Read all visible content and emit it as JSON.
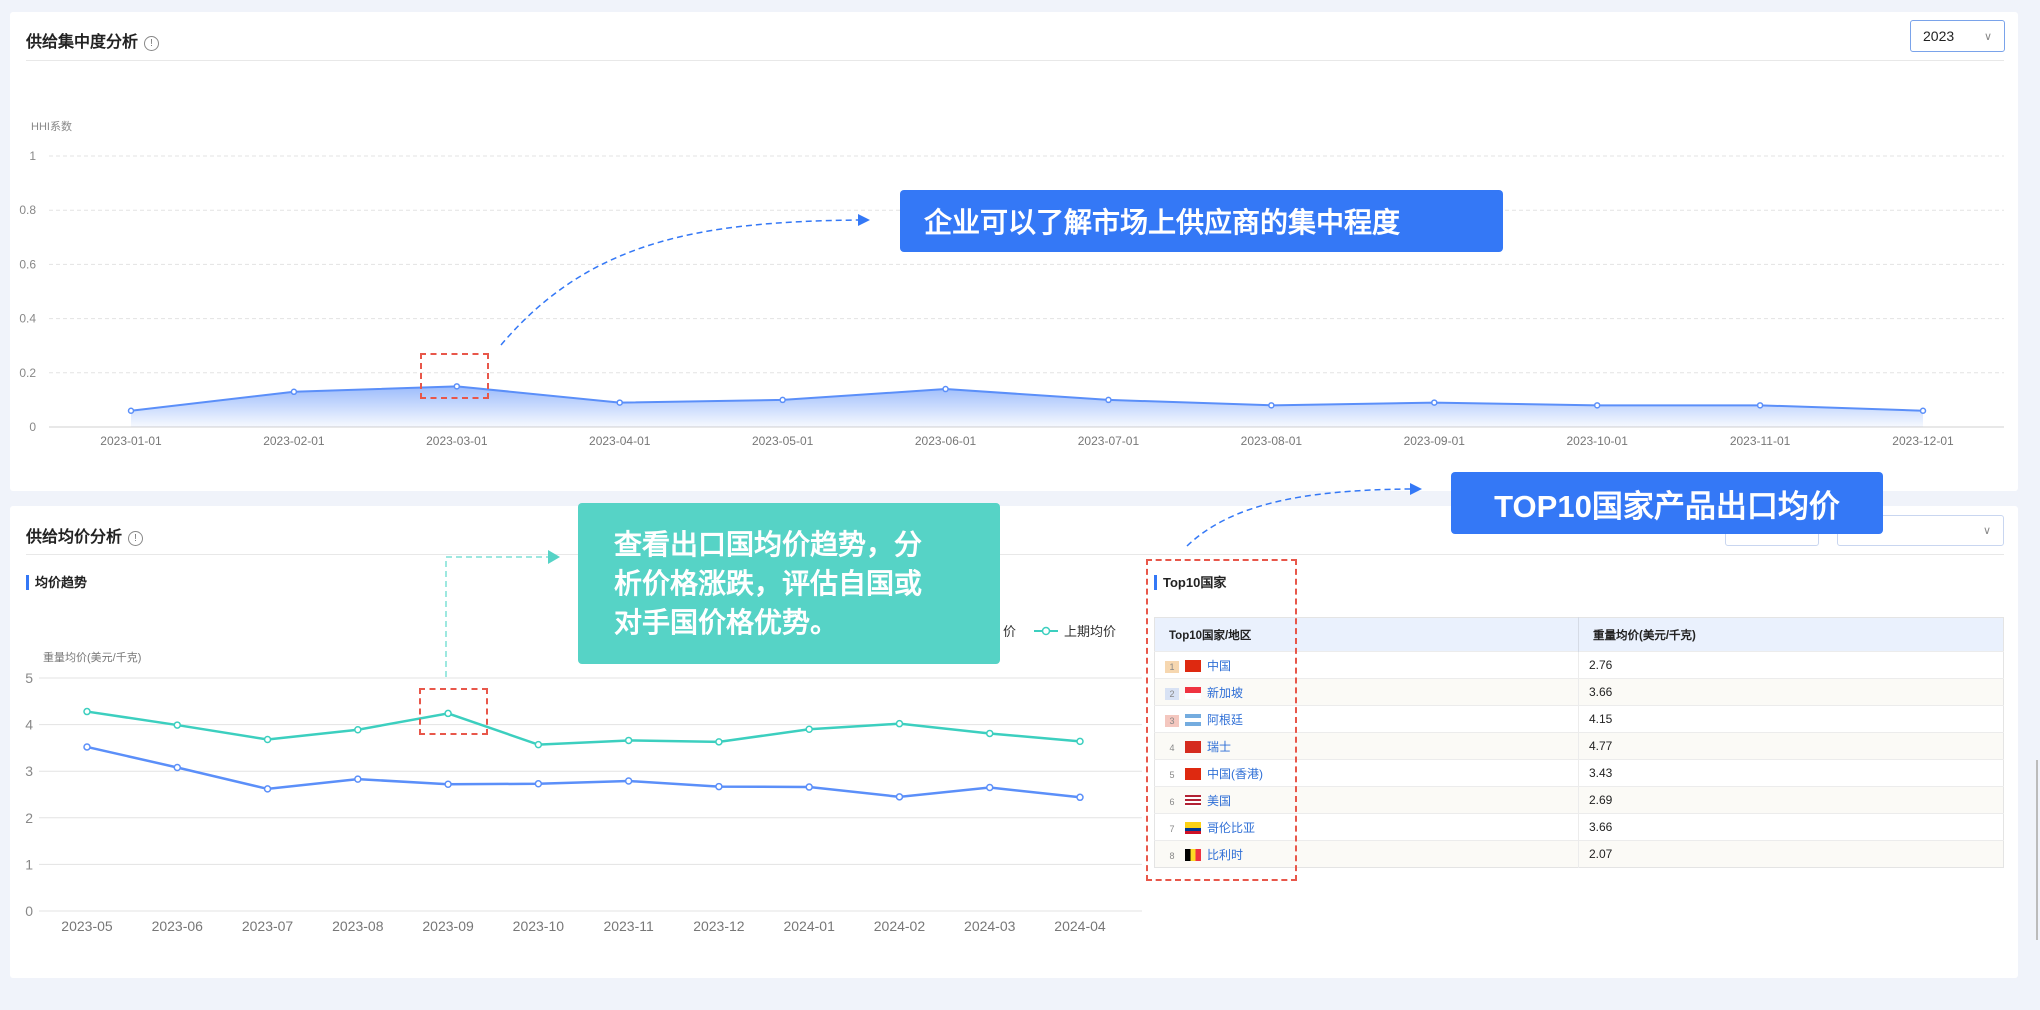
{
  "supply_concentration": {
    "title": "供给集中度分析",
    "info_icon": "info-circle-icon",
    "year_select": {
      "value": "2023"
    },
    "chart_data": {
      "type": "area",
      "ylabel": "HHI系数",
      "ylim": [
        0,
        1
      ],
      "yticks": [
        "0",
        "0.2",
        "0.4",
        "0.6",
        "0.8",
        "1"
      ],
      "grid": true,
      "categories": [
        "2023-01-01",
        "2023-02-01",
        "2023-03-01",
        "2023-04-01",
        "2023-05-01",
        "2023-06-01",
        "2023-07-01",
        "2023-08-01",
        "2023-09-01",
        "2023-10-01",
        "2023-11-01",
        "2023-12-01"
      ],
      "values": [
        0.06,
        0.13,
        0.15,
        0.09,
        0.1,
        0.14,
        0.1,
        0.08,
        0.09,
        0.08,
        0.08,
        0.06
      ],
      "color": "#5b8ff9"
    },
    "callout": "企业可以了解市场上供应商的集中程度"
  },
  "supply_price": {
    "title": "供给均价分析",
    "info_icon": "info-circle-icon",
    "trend_title": "均价趋势",
    "chart_data": {
      "type": "line",
      "ylabel": "重量均价(美元/千克)",
      "ylim": [
        0,
        5
      ],
      "yticks": [
        "0",
        "1",
        "2",
        "3",
        "4",
        "5"
      ],
      "grid": true,
      "legend_placement": "top-right",
      "categories": [
        "2023-05",
        "2023-06",
        "2023-07",
        "2023-08",
        "2023-09",
        "2023-10",
        "2023-11",
        "2023-12",
        "2024-01",
        "2024-02",
        "2024-03",
        "2024-04"
      ],
      "series": [
        {
          "name": "价",
          "color": "#5b8ff9",
          "values": [
            3.52,
            3.08,
            2.62,
            2.83,
            2.72,
            2.73,
            2.79,
            2.67,
            2.66,
            2.45,
            2.65,
            2.44
          ]
        },
        {
          "name": "上期均价",
          "color": "#3ccfbf",
          "values": [
            4.28,
            3.99,
            3.68,
            3.89,
            4.24,
            3.57,
            3.66,
            3.63,
            3.9,
            4.02,
            3.81,
            3.64
          ]
        }
      ]
    },
    "callout_trend": [
      "查看出口国均价趋势，分",
      "析价格涨跌，评估自国或",
      "对手国价格优势。"
    ],
    "callout_top10": "TOP10国家产品出口均价",
    "top10": {
      "title": "Top10国家",
      "columns": [
        "Top10国家/地区",
        "重量均价(美元/千克)"
      ],
      "rows": [
        {
          "rank": "1",
          "country": "中国",
          "flag": "cn",
          "price": "2.76"
        },
        {
          "rank": "2",
          "country": "新加坡",
          "flag": "sg",
          "price": "3.66"
        },
        {
          "rank": "3",
          "country": "阿根廷",
          "flag": "ar",
          "price": "4.15"
        },
        {
          "rank": "4",
          "country": "瑞士",
          "flag": "ch",
          "price": "4.77"
        },
        {
          "rank": "5",
          "country": "中国(香港)",
          "flag": "hk",
          "price": "3.43"
        },
        {
          "rank": "6",
          "country": "美国",
          "flag": "us",
          "price": "2.69"
        },
        {
          "rank": "7",
          "country": "哥伦比亚",
          "flag": "co",
          "price": "3.66"
        },
        {
          "rank": "8",
          "country": "比利时",
          "flag": "be",
          "price": "2.07"
        }
      ]
    }
  }
}
